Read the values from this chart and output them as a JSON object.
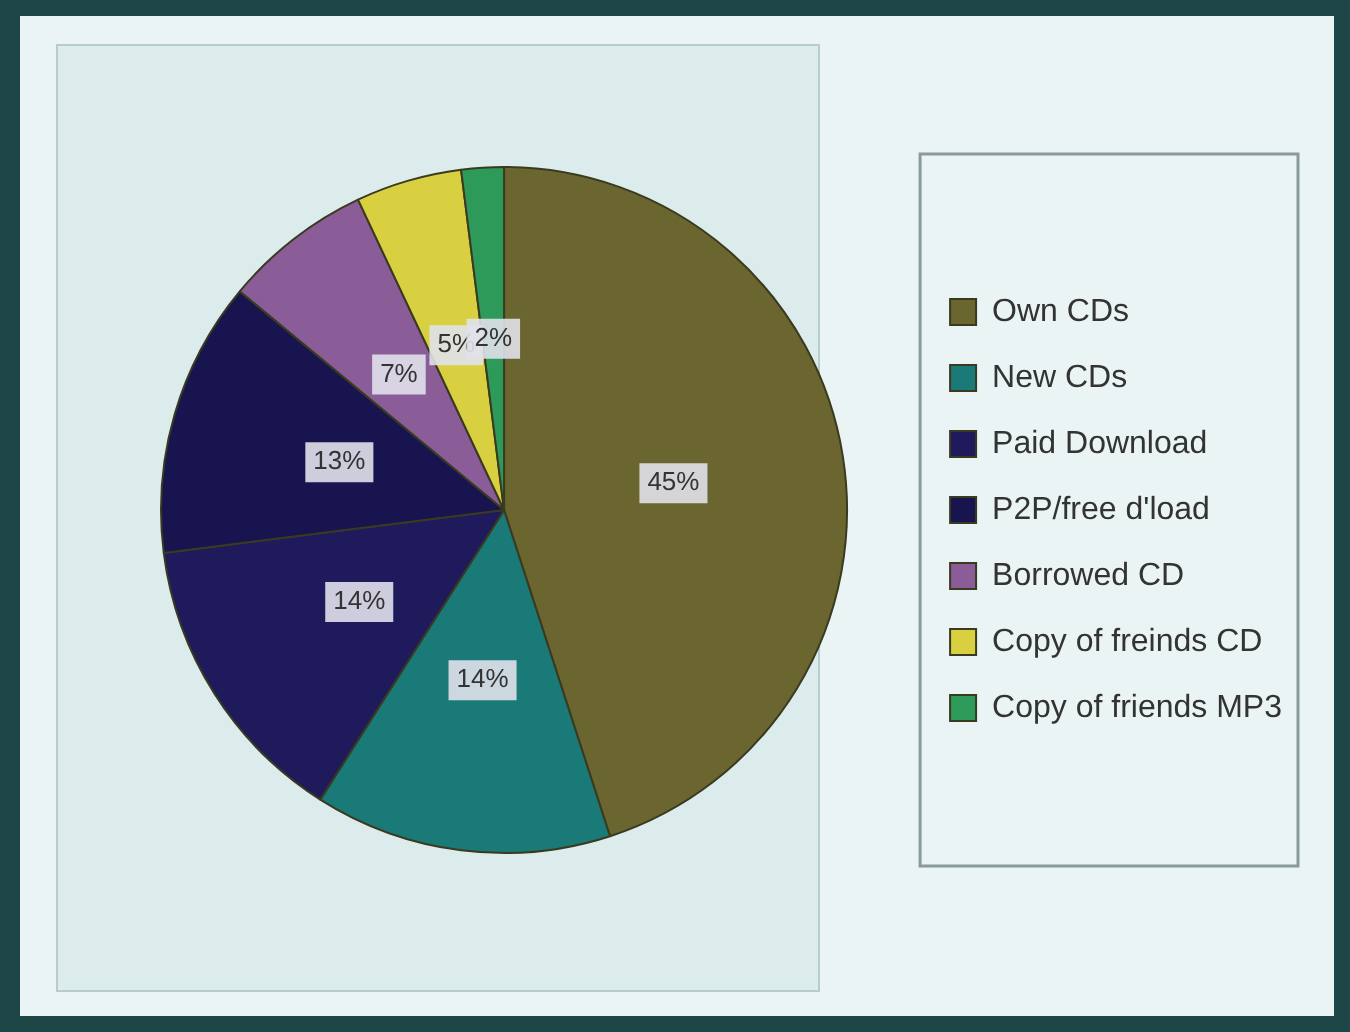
{
  "chart_data": {
    "type": "pie",
    "categories": [
      "Own CDs",
      "New CDs",
      "Paid Download",
      "P2P/free d'load",
      "Borrowed CD",
      "Copy of freinds CD",
      "Copy of friends MP3"
    ],
    "values": [
      45,
      14,
      14,
      13,
      7,
      5,
      2
    ],
    "value_labels": [
      "45%",
      "14%",
      "14%",
      "13%",
      "7%",
      "5%",
      "2%"
    ],
    "colors": [
      "#6b6630",
      "#1a7a78",
      "#1e1a5c",
      "#17144f",
      "#8a5c98",
      "#d8d040",
      "#2e9a5a"
    ],
    "legend": "right"
  }
}
